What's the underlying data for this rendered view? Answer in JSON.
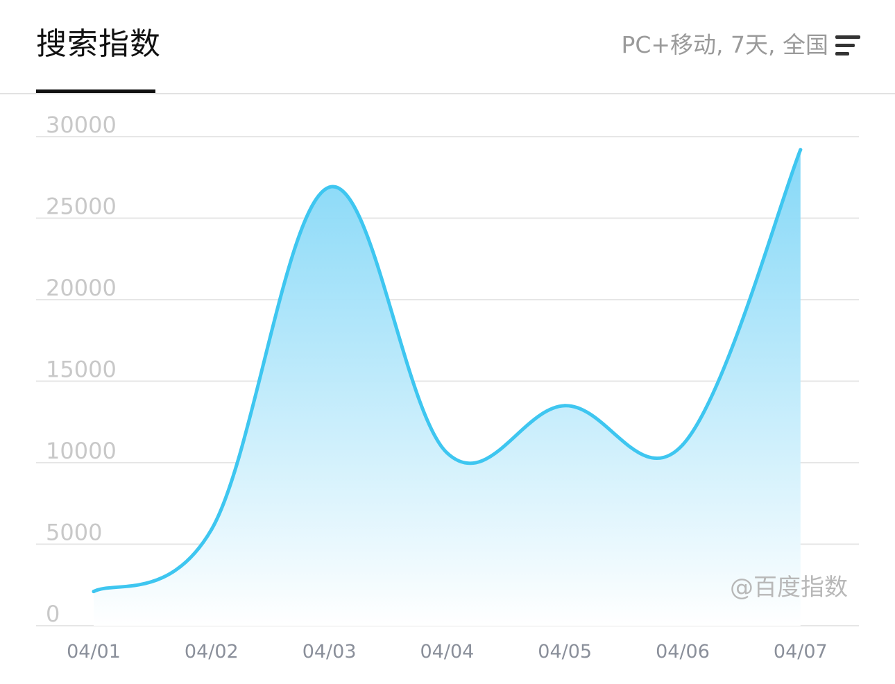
{
  "header": {
    "tab_title": "搜索指数",
    "filter_label": "PC+移动, 7天, 全国",
    "filter_icon": "filter-lines-icon"
  },
  "watermark": "@百度指数",
  "colors": {
    "line": "#3ec6f0",
    "area_top": "#7fd6f7",
    "area_bottom": "#ffffff",
    "grid": "#e6e6e6",
    "tick_text": "#c8c8c8",
    "x_tick_text": "#8a8f9a"
  },
  "chart_data": {
    "type": "area",
    "title": "",
    "xlabel": "",
    "ylabel": "",
    "categories": [
      "04/01",
      "04/02",
      "04/03",
      "04/04",
      "04/05",
      "04/06",
      "04/07"
    ],
    "values": [
      2100,
      5900,
      26900,
      10600,
      13500,
      11100,
      29200
    ],
    "ylim": [
      0,
      30000
    ],
    "y_ticks": [
      "0",
      "5000",
      "10000",
      "15000",
      "20000",
      "25000",
      "30000"
    ],
    "grid": true,
    "legend": "none"
  }
}
